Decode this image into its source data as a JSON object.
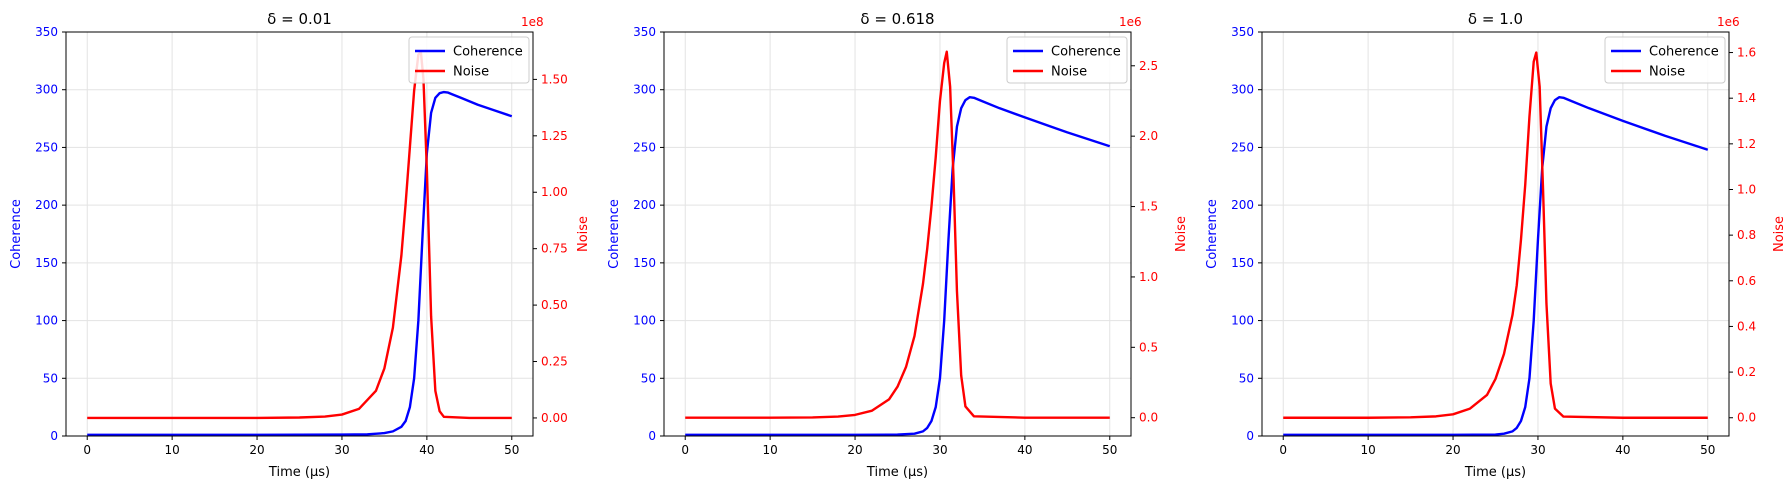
{
  "figure": {
    "colors": {
      "coherence": "#0000ff",
      "noise": "#ff0000",
      "grid": "#e3e3e3",
      "axis": "#000000"
    }
  },
  "chart_data": [
    {
      "type": "line",
      "title": "δ = 0.01",
      "xlabel": "Time (μs)",
      "ylabel": "Coherence",
      "y2label": "Noise",
      "y2_offset_label": "1e8",
      "xlim": [
        -2.5,
        52.5
      ],
      "xticks": [
        0,
        10,
        20,
        30,
        40,
        50
      ],
      "xtick_labels": [
        "0",
        "10",
        "20",
        "30",
        "40",
        "50"
      ],
      "ylim": [
        0,
        350
      ],
      "yticks": [
        0,
        50,
        100,
        150,
        200,
        250,
        300,
        350
      ],
      "ytick_labels": [
        "0",
        "50",
        "100",
        "150",
        "200",
        "250",
        "300",
        "350"
      ],
      "y2lim": [
        -0.08,
        1.71
      ],
      "y2ticks": [
        0,
        0.25,
        0.5,
        0.75,
        1.0,
        1.25,
        1.5
      ],
      "y2tick_labels": [
        "0.00",
        "0.25",
        "0.50",
        "0.75",
        "1.00",
        "1.25",
        "1.50"
      ],
      "grid": true,
      "legend_position": "top-right",
      "series": [
        {
          "name": "Coherence",
          "axis": "left",
          "color": "#0000ff",
          "x": [
            0,
            10,
            20,
            30,
            33,
            35,
            36,
            37,
            37.5,
            38,
            38.5,
            39,
            39.5,
            40,
            40.5,
            41,
            41.5,
            42,
            42.5,
            43,
            44,
            46,
            48,
            50
          ],
          "y": [
            1,
            1,
            1,
            1.2,
            1.5,
            2.5,
            4,
            8,
            13,
            25,
            50,
            100,
            175,
            245,
            280,
            293,
            297,
            298,
            297.5,
            296,
            293,
            287,
            282,
            277
          ]
        },
        {
          "name": "Noise",
          "axis": "right",
          "color": "#ff0000",
          "x": [
            0,
            10,
            20,
            25,
            28,
            30,
            32,
            34,
            35,
            36,
            37,
            37.5,
            38,
            38.5,
            39,
            39.3,
            39.6,
            40,
            40.5,
            41,
            41.5,
            42,
            45,
            50
          ],
          "y": [
            0,
            0,
            0.0002,
            0.002,
            0.006,
            0.015,
            0.04,
            0.12,
            0.22,
            0.4,
            0.72,
            0.95,
            1.2,
            1.45,
            1.61,
            1.62,
            1.5,
            1.1,
            0.45,
            0.12,
            0.03,
            0.005,
            0,
            0
          ]
        }
      ]
    },
    {
      "type": "line",
      "title": "δ = 0.618",
      "xlabel": "Time (μs)",
      "ylabel": "Coherence",
      "y2label": "Noise",
      "y2_offset_label": "1e6",
      "xlim": [
        -2.5,
        52.5
      ],
      "xticks": [
        0,
        10,
        20,
        30,
        40,
        50
      ],
      "xtick_labels": [
        "0",
        "10",
        "20",
        "30",
        "40",
        "50"
      ],
      "ylim": [
        0,
        350
      ],
      "yticks": [
        0,
        50,
        100,
        150,
        200,
        250,
        300,
        350
      ],
      "ytick_labels": [
        "0",
        "50",
        "100",
        "150",
        "200",
        "250",
        "300",
        "350"
      ],
      "y2lim": [
        -0.13,
        2.74
      ],
      "y2ticks": [
        0,
        0.5,
        1.0,
        1.5,
        2.0,
        2.5
      ],
      "y2tick_labels": [
        "0.0",
        "0.5",
        "1.0",
        "1.5",
        "2.0",
        "2.5"
      ],
      "grid": true,
      "legend_position": "top-right",
      "series": [
        {
          "name": "Coherence",
          "axis": "left",
          "color": "#0000ff",
          "x": [
            0,
            10,
            20,
            25,
            27,
            28,
            28.5,
            29,
            29.5,
            30,
            30.5,
            31,
            31.5,
            32,
            32.5,
            33,
            33.5,
            34,
            35,
            37,
            40,
            45,
            50
          ],
          "y": [
            1,
            1,
            1,
            1.2,
            2,
            4,
            7,
            13,
            25,
            50,
            100,
            170,
            232,
            268,
            284,
            291,
            293.5,
            293,
            290,
            284,
            276,
            263,
            251
          ]
        },
        {
          "name": "Noise",
          "axis": "right",
          "color": "#ff0000",
          "x": [
            0,
            10,
            15,
            18,
            20,
            22,
            24,
            25,
            26,
            27,
            28,
            28.5,
            29,
            29.5,
            30,
            30.5,
            30.8,
            31.2,
            31.6,
            32,
            32.5,
            33,
            34,
            40,
            50
          ],
          "y": [
            0,
            0,
            0.002,
            0.008,
            0.02,
            0.05,
            0.13,
            0.22,
            0.36,
            0.58,
            0.95,
            1.2,
            1.5,
            1.85,
            2.25,
            2.52,
            2.6,
            2.35,
            1.7,
            0.9,
            0.3,
            0.08,
            0.01,
            0,
            0
          ]
        }
      ]
    },
    {
      "type": "line",
      "title": "δ = 1.0",
      "xlabel": "Time (μs)",
      "ylabel": "Coherence",
      "y2label": "Noise",
      "y2_offset_label": "1e6",
      "xlim": [
        -2.5,
        52.5
      ],
      "xticks": [
        0,
        10,
        20,
        30,
        40,
        50
      ],
      "xtick_labels": [
        "0",
        "10",
        "20",
        "30",
        "40",
        "50"
      ],
      "ylim": [
        0,
        350
      ],
      "yticks": [
        0,
        50,
        100,
        150,
        200,
        250,
        300,
        350
      ],
      "ytick_labels": [
        "0",
        "50",
        "100",
        "150",
        "200",
        "250",
        "300",
        "350"
      ],
      "y2lim": [
        -0.08,
        1.69
      ],
      "y2ticks": [
        0,
        0.2,
        0.4,
        0.6,
        0.8,
        1.0,
        1.2,
        1.4,
        1.6
      ],
      "y2tick_labels": [
        "0.0",
        "0.2",
        "0.4",
        "0.6",
        "0.8",
        "1.0",
        "1.2",
        "1.4",
        "1.6"
      ],
      "grid": true,
      "legend_position": "top-right",
      "series": [
        {
          "name": "Coherence",
          "axis": "left",
          "color": "#0000ff",
          "x": [
            0,
            10,
            20,
            25,
            26,
            27,
            27.5,
            28,
            28.5,
            29,
            29.5,
            30,
            30.5,
            31,
            31.5,
            32,
            32.5,
            33,
            34,
            36,
            40,
            45,
            50
          ],
          "y": [
            1,
            1,
            1,
            1.2,
            2,
            4,
            7,
            13,
            25,
            50,
            100,
            170,
            232,
            268,
            284,
            291,
            293.5,
            293,
            290,
            284,
            273,
            260,
            248
          ]
        },
        {
          "name": "Noise",
          "axis": "right",
          "color": "#ff0000",
          "x": [
            0,
            10,
            15,
            18,
            20,
            22,
            24,
            25,
            26,
            27,
            27.5,
            28,
            28.5,
            29,
            29.5,
            29.8,
            30.2,
            30.6,
            31,
            31.5,
            32,
            33,
            40,
            50
          ],
          "y": [
            0,
            0,
            0.002,
            0.006,
            0.015,
            0.04,
            0.1,
            0.17,
            0.28,
            0.45,
            0.58,
            0.78,
            1.02,
            1.32,
            1.56,
            1.6,
            1.45,
            1.0,
            0.5,
            0.15,
            0.04,
            0.005,
            0,
            0
          ]
        }
      ]
    }
  ]
}
